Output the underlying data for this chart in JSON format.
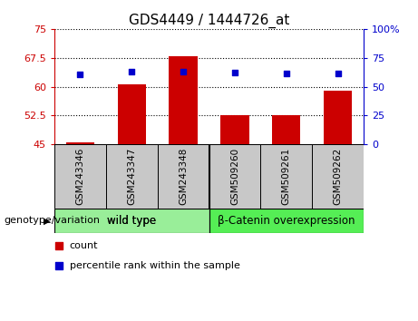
{
  "title": "GDS4449 / 1444726_at",
  "categories": [
    "GSM243346",
    "GSM243347",
    "GSM243348",
    "GSM509260",
    "GSM509261",
    "GSM509262"
  ],
  "bar_values": [
    45.5,
    60.5,
    68.0,
    52.5,
    52.7,
    59.0
  ],
  "dot_values": [
    61.0,
    63.0,
    63.0,
    62.0,
    61.5,
    61.5
  ],
  "bar_color": "#cc0000",
  "dot_color": "#0000cc",
  "left_ylim": [
    45,
    75
  ],
  "left_yticks": [
    45,
    52.5,
    60,
    67.5,
    75
  ],
  "left_yticklabels": [
    "45",
    "52.5",
    "60",
    "67.5",
    "75"
  ],
  "right_ylim": [
    0,
    100
  ],
  "right_yticks": [
    0,
    25,
    50,
    75,
    100
  ],
  "right_yticklabels": [
    "0",
    "25",
    "50",
    "75",
    "100%"
  ],
  "hlines": [
    52.5,
    60.0,
    67.5,
    75.0
  ],
  "group1_label": "wild type",
  "group2_label": "β-Catenin overexpression",
  "group_label_prefix": "genotype/variation",
  "group1_color": "#99ee99",
  "group2_color": "#55ee55",
  "legend_bar_label": "count",
  "legend_dot_label": "percentile rank within the sample",
  "bar_width": 0.55,
  "bg_color": "#ffffff",
  "plot_bg_color": "#ffffff",
  "tick_label_color_left": "#cc0000",
  "tick_label_color_right": "#0000cc",
  "gray_box_color": "#c8c8c8",
  "separator_col": 3
}
